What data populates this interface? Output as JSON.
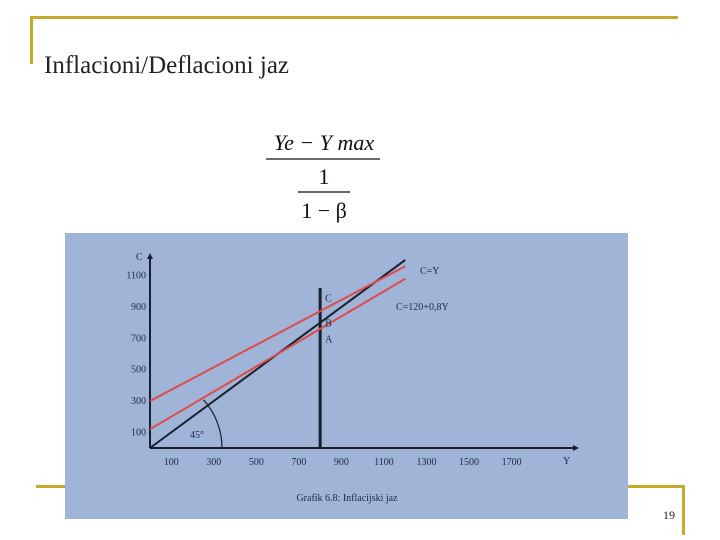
{
  "slide": {
    "title": "Inflacioni/Deflacioni jaz",
    "page_number": "19"
  },
  "formula": {
    "numerator": "Ye − Y max",
    "middle": "1",
    "denominator": "1 − β"
  },
  "colors": {
    "frame": "#c8aa2a",
    "chart_background": "#9fb4d6",
    "axis": "#1a1f2e",
    "red_lines": "#e04a4a"
  },
  "chart_data": {
    "type": "line",
    "caption": "Grafik 6.8: Inflacijski jaz",
    "xlabel": "Y",
    "ylabel": "C",
    "x_ticks": [
      100,
      300,
      500,
      700,
      900,
      1100,
      1300,
      1500,
      1700
    ],
    "y_ticks": [
      100,
      300,
      500,
      700,
      900,
      1100
    ],
    "angle_label": "45°",
    "vertical_line_x": 800,
    "series": [
      {
        "name": "C=Y",
        "x": [
          0,
          1200
        ],
        "y": [
          0,
          1200
        ]
      },
      {
        "name": "C=120+0,8Y",
        "x": [
          0,
          1200
        ],
        "y": [
          120,
          1080
        ]
      },
      {
        "name": "",
        "x": [
          0,
          1200
        ],
        "y": [
          300,
          1160
        ]
      }
    ],
    "points": [
      {
        "label": "C",
        "x": 800,
        "y": 960
      },
      {
        "label": "B",
        "x": 800,
        "y": 800
      },
      {
        "label": "A",
        "x": 800,
        "y": 700
      }
    ]
  }
}
